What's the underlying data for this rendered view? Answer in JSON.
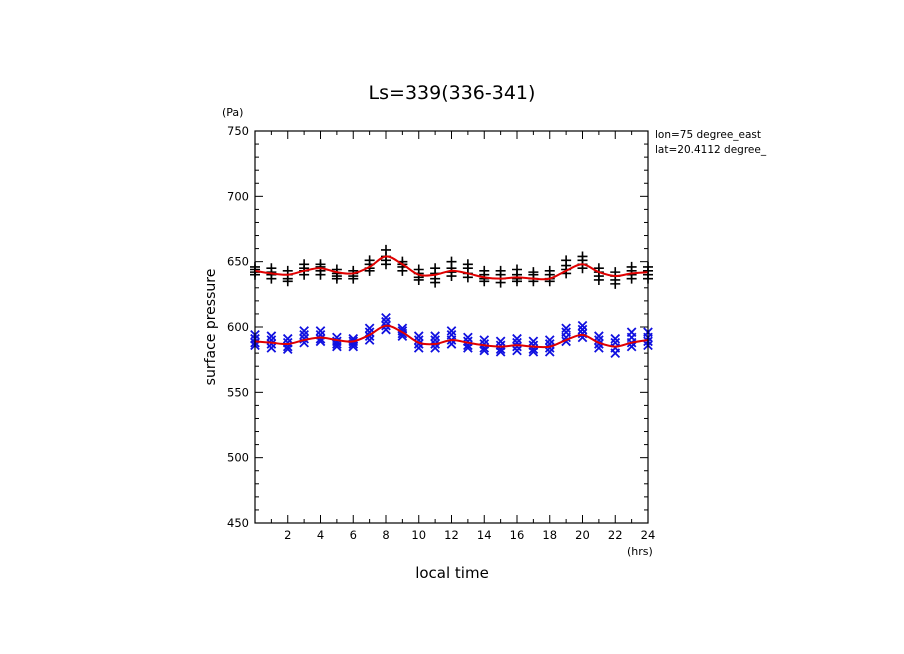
{
  "chart_data": {
    "type": "scatter",
    "title": "Ls=339(336-341)",
    "xlabel": "local time",
    "ylabel": "surface pressure",
    "xunit": "(hrs)",
    "yunit": "(Pa)",
    "xlim": [
      0,
      24
    ],
    "ylim": [
      450,
      750
    ],
    "xticks": [
      2,
      4,
      6,
      8,
      10,
      12,
      14,
      16,
      18,
      20,
      22,
      24
    ],
    "yticks": [
      450,
      500,
      550,
      600,
      650,
      700,
      750
    ],
    "annotations": [
      "lon=75 degree_east",
      "lat=20.4112 degree_"
    ],
    "colors": {
      "series1": "#000000",
      "series2": "#1010e0",
      "fit": "#e00000"
    },
    "series": [
      {
        "marker": "plus",
        "color": "#000000",
        "x": [
          0,
          0,
          0,
          0,
          1,
          1,
          1,
          1,
          2,
          2,
          2,
          2,
          3,
          3,
          3,
          3,
          4,
          4,
          4,
          4,
          5,
          5,
          5,
          5,
          6,
          6,
          6,
          6,
          7,
          7,
          7,
          7,
          8,
          8,
          8,
          8,
          9,
          9,
          9,
          9,
          10,
          10,
          10,
          10,
          11,
          11,
          11,
          11,
          12,
          12,
          12,
          12,
          13,
          13,
          13,
          13,
          14,
          14,
          14,
          14,
          15,
          15,
          15,
          15,
          16,
          16,
          16,
          16,
          17,
          17,
          17,
          17,
          18,
          18,
          18,
          18,
          19,
          19,
          19,
          19,
          20,
          20,
          20,
          20,
          21,
          21,
          21,
          21,
          22,
          22,
          22,
          22,
          23,
          23,
          23,
          23,
          24,
          24,
          24,
          24
        ],
        "y": [
          646,
          644,
          642,
          640,
          645,
          642,
          640,
          637,
          643,
          640,
          637,
          635,
          648,
          645,
          643,
          640,
          648,
          646,
          643,
          640,
          644,
          641,
          639,
          637,
          643,
          641,
          639,
          637,
          651,
          648,
          645,
          643,
          659,
          654,
          651,
          648,
          650,
          648,
          646,
          643,
          644,
          641,
          638,
          636,
          645,
          641,
          637,
          634,
          650,
          645,
          642,
          639,
          648,
          645,
          641,
          638,
          643,
          640,
          637,
          635,
          643,
          640,
          637,
          634,
          644,
          640,
          637,
          635,
          642,
          640,
          637,
          635,
          643,
          640,
          637,
          635,
          651,
          647,
          644,
          641,
          654,
          651,
          648,
          645,
          645,
          642,
          639,
          636,
          642,
          639,
          636,
          633,
          646,
          643,
          640,
          637,
          646,
          643,
          640,
          637
        ]
      },
      {
        "marker": "cross",
        "color": "#1010e0",
        "x": [
          0,
          0,
          0,
          0,
          1,
          1,
          1,
          1,
          2,
          2,
          2,
          2,
          3,
          3,
          3,
          3,
          4,
          4,
          4,
          4,
          5,
          5,
          5,
          5,
          6,
          6,
          6,
          6,
          7,
          7,
          7,
          7,
          8,
          8,
          8,
          8,
          9,
          9,
          9,
          9,
          10,
          10,
          10,
          10,
          11,
          11,
          11,
          11,
          12,
          12,
          12,
          12,
          13,
          13,
          13,
          13,
          14,
          14,
          14,
          14,
          15,
          15,
          15,
          15,
          16,
          16,
          16,
          16,
          17,
          17,
          17,
          17,
          18,
          18,
          18,
          18,
          19,
          19,
          19,
          19,
          20,
          20,
          20,
          20,
          21,
          21,
          21,
          21,
          22,
          22,
          22,
          22,
          23,
          23,
          23,
          23,
          24,
          24,
          24,
          24
        ],
        "y": [
          594,
          591,
          588,
          586,
          593,
          590,
          587,
          584,
          591,
          588,
          585,
          583,
          597,
          594,
          591,
          588,
          597,
          594,
          591,
          589,
          592,
          589,
          587,
          585,
          591,
          589,
          587,
          585,
          599,
          596,
          593,
          590,
          607,
          604,
          601,
          598,
          599,
          597,
          595,
          593,
          593,
          590,
          587,
          584,
          593,
          590,
          587,
          584,
          597,
          594,
          590,
          587,
          592,
          589,
          586,
          584,
          590,
          587,
          584,
          582,
          589,
          586,
          583,
          581,
          591,
          588,
          585,
          582,
          589,
          586,
          583,
          581,
          590,
          587,
          584,
          581,
          599,
          596,
          592,
          589,
          601,
          598,
          595,
          592,
          593,
          590,
          587,
          584,
          591,
          588,
          584,
          580,
          596,
          592,
          588,
          585,
          596,
          592,
          589,
          586
        ]
      },
      {
        "marker": "line",
        "color": "#e00000",
        "x": [
          0,
          1,
          2,
          3,
          4,
          5,
          6,
          7,
          8,
          9,
          10,
          11,
          12,
          13,
          14,
          15,
          16,
          17,
          18,
          19,
          20,
          21,
          22,
          23,
          24
        ],
        "y": [
          643,
          641,
          640,
          643,
          645,
          642,
          641,
          646,
          654,
          648,
          640,
          640,
          643,
          641,
          638,
          637,
          638,
          637,
          637,
          643,
          648,
          642,
          639,
          641,
          642
        ],
        "y2": [
          589,
          588,
          587,
          590,
          592,
          590,
          589,
          594,
          601,
          596,
          588,
          587,
          590,
          588,
          586,
          585,
          586,
          585,
          585,
          590,
          594,
          588,
          585,
          588,
          590
        ]
      }
    ]
  }
}
